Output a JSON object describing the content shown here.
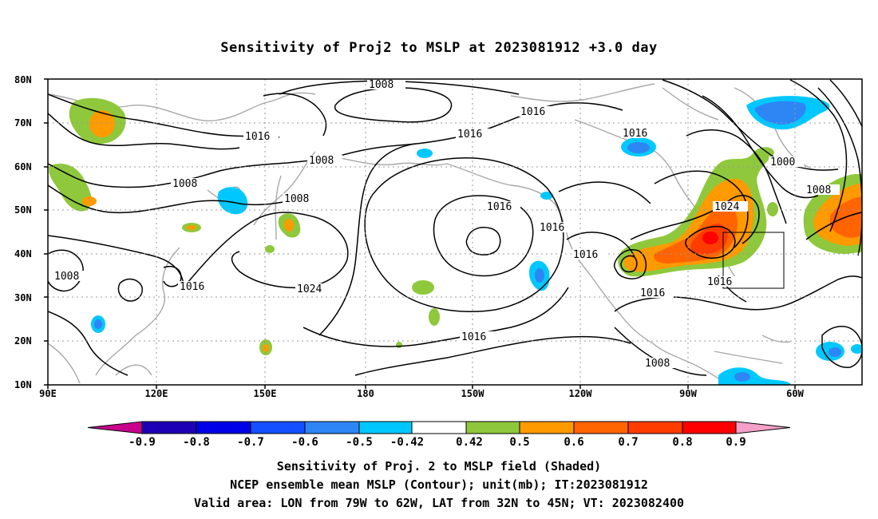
{
  "title": "Sensitivity of Proj2 to MSLP at 2023081912 +3.0 day",
  "axes": {
    "lat_labels": [
      "80N",
      "70N",
      "60N",
      "50N",
      "40N",
      "30N",
      "20N",
      "10N"
    ],
    "lon_labels": [
      "90E",
      "120E",
      "150E",
      "180",
      "150W",
      "120W",
      "90W",
      "60W"
    ]
  },
  "contour_labels": [
    "1008",
    "1016",
    "1016",
    "1016",
    "1016",
    "1008",
    "1008",
    "1008",
    "1016",
    "1024",
    "1016",
    "1016",
    "1016",
    "1024",
    "1016",
    "1016",
    "1000",
    "1008",
    "1008",
    "1016",
    "1008"
  ],
  "colorbar": {
    "labels": [
      "-0.9",
      "-0.8",
      "-0.7",
      "-0.6",
      "-0.5",
      "-0.42",
      "0.42",
      "0.5",
      "0.6",
      "0.7",
      "0.8",
      "0.9"
    ],
    "colors": [
      "#c8008c",
      "#1e00b4",
      "#0000e6",
      "#1450ff",
      "#2e86f5",
      "#00c8ff",
      "#ffffff",
      "#8fc83c",
      "#ff9a00",
      "#ff6400",
      "#ff3c00",
      "#ff0000",
      "#f5a0c8"
    ]
  },
  "captions": {
    "line1": "Sensitivity of Proj. 2 to MSLP field (Shaded)",
    "line2": "NCEP ensemble mean MSLP (Contour); unit(mb); IT:2023081912",
    "line3": "Valid area: LON from 79W to 62W, LAT from 32N to 45N; VT: 2023082400"
  },
  "valid_area": {
    "lon_from": "79W",
    "lon_to": "62W",
    "lat_from": "32N",
    "lat_to": "45N"
  }
}
